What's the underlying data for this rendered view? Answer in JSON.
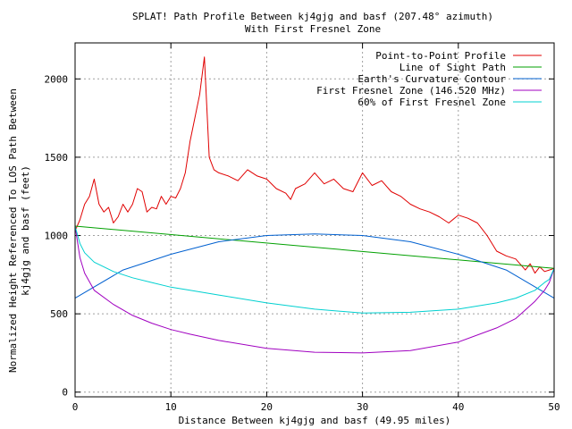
{
  "chart_data": {
    "type": "line",
    "title": "SPLAT! Path Profile Between kj4gjg and basf (207.48° azimuth)",
    "subtitle": "With First Fresnel Zone",
    "xlabel": "Distance Between kj4gjg and basf (49.95 miles)",
    "ylabel_line1": "Normalized Height Referenced To LOS Path Between",
    "ylabel_line2": "kj4gjg and basf (feet)",
    "xlim": [
      0,
      50
    ],
    "ylim": [
      -30,
      2230
    ],
    "x_ticks": [
      0,
      10,
      20,
      30,
      40,
      50
    ],
    "y_ticks": [
      0,
      500,
      1000,
      1500,
      2000
    ],
    "grid": true,
    "legend_position": "top-right",
    "series": [
      {
        "name": "Point-to-Point Profile",
        "color": "#e00000",
        "x": [
          0,
          0.5,
          1,
          1.5,
          2,
          2.5,
          3,
          3.5,
          4,
          4.5,
          5,
          5.5,
          6,
          6.5,
          7,
          7.5,
          8,
          8.5,
          9,
          9.5,
          10,
          10.5,
          11,
          11.5,
          12,
          12.5,
          13,
          13.5,
          14,
          14.5,
          15,
          16,
          17,
          18,
          19,
          20,
          21,
          22,
          22.5,
          23,
          24,
          25,
          26,
          27,
          28,
          29,
          30,
          31,
          32,
          33,
          34,
          35,
          36,
          37,
          38,
          39,
          40,
          41,
          42,
          43,
          44,
          45,
          46,
          47,
          47.5,
          48,
          48.5,
          49,
          49.5,
          50
        ],
        "values": [
          1030,
          1100,
          1200,
          1250,
          1360,
          1200,
          1150,
          1180,
          1080,
          1120,
          1200,
          1150,
          1200,
          1300,
          1280,
          1150,
          1180,
          1170,
          1250,
          1200,
          1250,
          1240,
          1300,
          1400,
          1600,
          1750,
          1900,
          2140,
          1500,
          1420,
          1400,
          1380,
          1350,
          1420,
          1380,
          1360,
          1300,
          1270,
          1230,
          1300,
          1330,
          1400,
          1330,
          1360,
          1300,
          1280,
          1400,
          1320,
          1350,
          1280,
          1250,
          1200,
          1170,
          1150,
          1120,
          1080,
          1130,
          1110,
          1080,
          1000,
          900,
          870,
          850,
          780,
          820,
          760,
          800,
          770,
          780,
          790
        ]
      },
      {
        "name": "Line of Sight Path",
        "color": "#00a000",
        "x": [
          0,
          50
        ],
        "values": [
          1060,
          790
        ]
      },
      {
        "name": "Earth's Curvature Contour",
        "color": "#0060d0",
        "x": [
          0,
          5,
          10,
          15,
          20,
          25,
          30,
          35,
          40,
          45,
          50
        ],
        "values": [
          600,
          780,
          880,
          960,
          1000,
          1010,
          1000,
          960,
          880,
          780,
          600
        ]
      },
      {
        "name": "First Fresnel Zone (146.520 MHz)",
        "color": "#a000c0",
        "x": [
          0,
          0.5,
          1,
          2,
          4,
          6,
          8,
          10,
          12,
          15,
          20,
          25,
          30,
          35,
          40,
          44,
          46,
          48,
          49,
          49.5,
          50
        ],
        "values": [
          1060,
          860,
          760,
          650,
          560,
          490,
          440,
          400,
          370,
          330,
          280,
          255,
          250,
          265,
          320,
          410,
          470,
          580,
          650,
          700,
          790
        ]
      },
      {
        "name": "60% of First Fresnel Zone",
        "color": "#00d0d0",
        "x": [
          0,
          0.5,
          1,
          2,
          4,
          6,
          8,
          10,
          12,
          15,
          20,
          25,
          30,
          35,
          40,
          44,
          46,
          48,
          49,
          49.5,
          50
        ],
        "values": [
          1060,
          950,
          890,
          830,
          770,
          730,
          700,
          670,
          650,
          620,
          570,
          530,
          505,
          510,
          530,
          570,
          600,
          650,
          700,
          720,
          790
        ]
      }
    ]
  }
}
